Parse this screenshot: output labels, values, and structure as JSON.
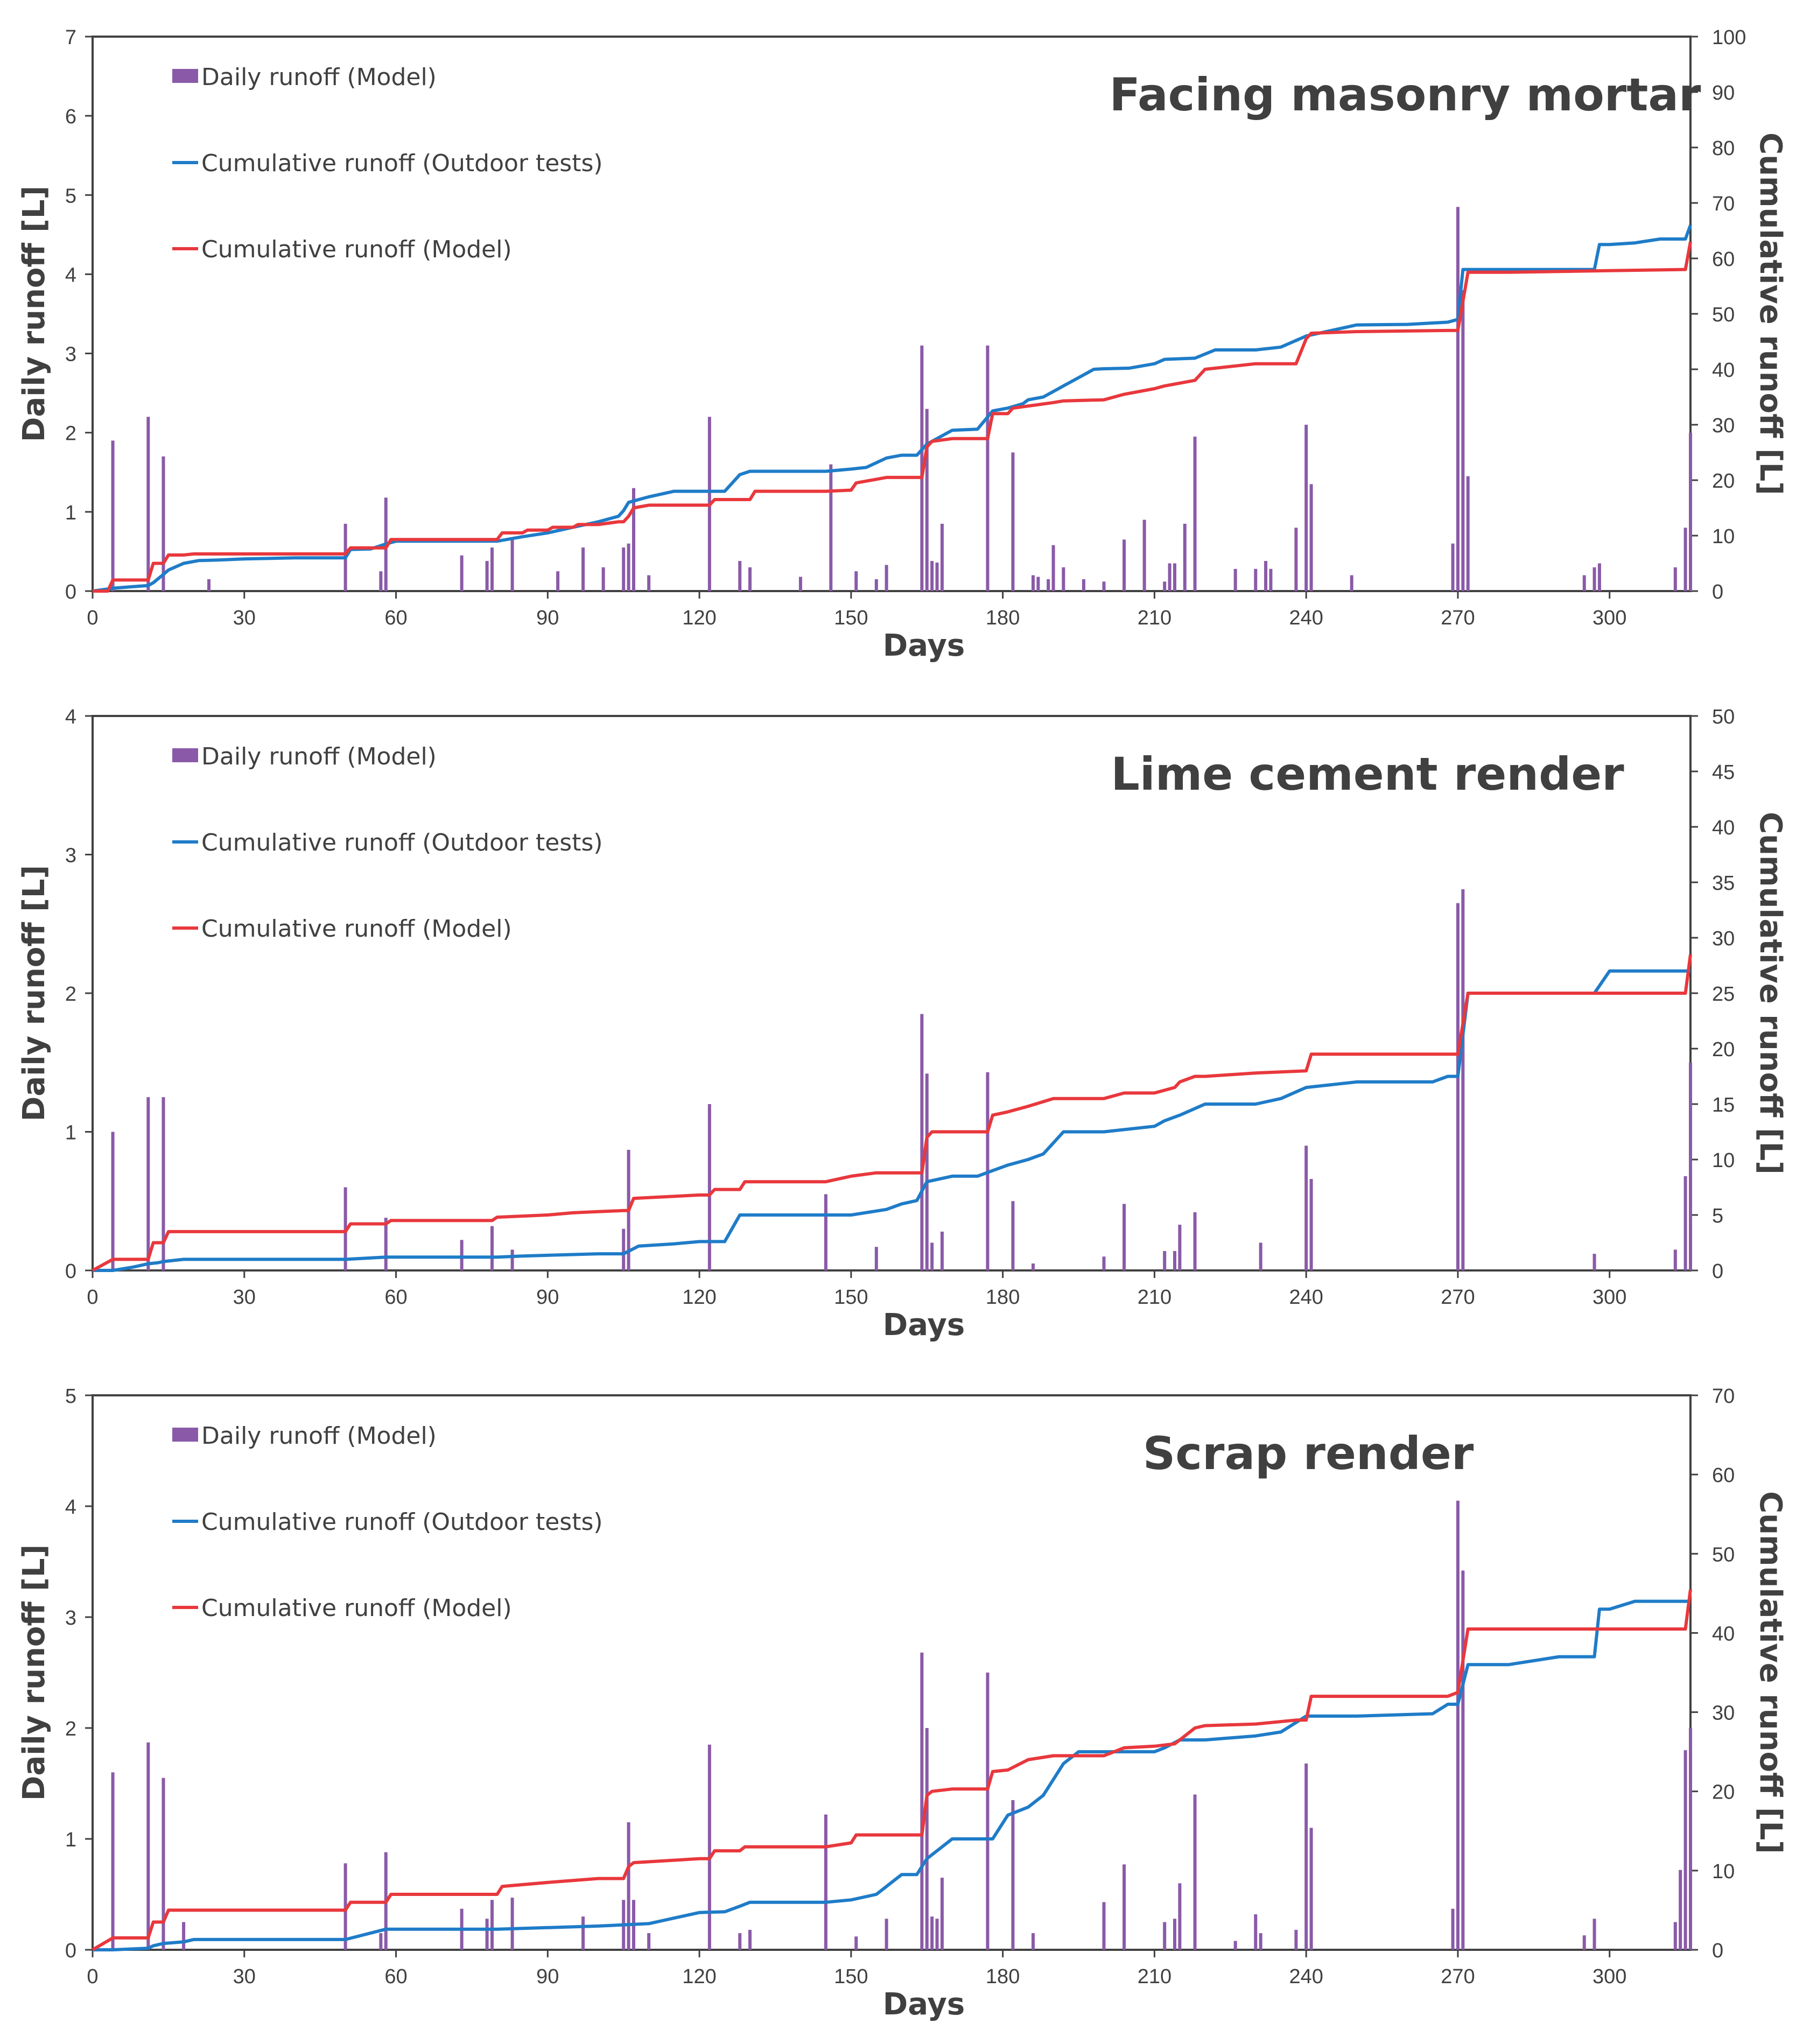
{
  "colors": {
    "model_bar": "#8a5aa8",
    "outdoor_line": "#1f7cc8",
    "model_line": "#e8383d",
    "axis": "#404040"
  },
  "legend": {
    "daily_model": "Daily runoff (Model)",
    "cum_outdoor": "Cumulative runoff (Outdoor tests)",
    "cum_model": "Cumulative runoff (Model)"
  },
  "chart_data": [
    {
      "type": "bar+line",
      "title": "Facing masonry mortar",
      "xlabel": "Days",
      "ylabel": "Daily runoff  [L]",
      "y2label": "Cumulative runoff [L]",
      "xlim": [
        0,
        316
      ],
      "ylim": [
        0,
        7
      ],
      "y2lim": [
        0,
        100
      ],
      "xticks": [
        "0",
        "30",
        "60",
        "90",
        "120",
        "150",
        "180",
        "210",
        "240",
        "270",
        "300"
      ],
      "yticks": [
        "0",
        "1",
        "2",
        "3",
        "4",
        "5",
        "6",
        "7"
      ],
      "y2ticks": [
        "0",
        "10",
        "20",
        "30",
        "40",
        "50",
        "60",
        "70",
        "80",
        "90",
        "100"
      ],
      "bars": {
        "x": [
          4,
          11,
          14,
          23,
          50,
          57,
          58,
          73,
          78,
          79,
          83,
          92,
          97,
          101,
          105,
          106,
          107,
          110,
          122,
          128,
          130,
          140,
          146,
          151,
          155,
          157,
          164,
          165,
          166,
          167,
          168,
          177,
          182,
          186,
          187,
          189,
          190,
          192,
          196,
          200,
          204,
          208,
          212,
          213,
          214,
          216,
          218,
          226,
          230,
          232,
          233,
          238,
          240,
          241,
          249,
          269,
          270,
          271,
          272,
          295,
          297,
          298,
          313,
          315,
          316
        ],
        "y": [
          1.9,
          2.2,
          1.7,
          0.15,
          0.85,
          0.25,
          1.18,
          0.45,
          0.38,
          0.55,
          0.65,
          0.25,
          0.55,
          0.3,
          0.55,
          0.6,
          1.3,
          0.2,
          2.2,
          0.38,
          0.3,
          0.18,
          1.6,
          0.25,
          0.15,
          0.33,
          3.1,
          2.3,
          0.38,
          0.36,
          0.85,
          3.1,
          1.75,
          0.2,
          0.18,
          0.15,
          0.58,
          0.3,
          0.15,
          0.12,
          0.65,
          0.9,
          0.12,
          0.35,
          0.35,
          0.85,
          1.95,
          0.28,
          0.28,
          0.38,
          0.28,
          0.8,
          2.1,
          1.35,
          0.2,
          0.6,
          4.85,
          3.8,
          1.45,
          0.2,
          0.3,
          0.35,
          0.3,
          0.8,
          2.0
        ]
      },
      "cumulative_outdoor": {
        "x": [
          0,
          4,
          8,
          11,
          12,
          14,
          15,
          18,
          21,
          25,
          30,
          40,
          50,
          51,
          55,
          58,
          60,
          65,
          70,
          80,
          85,
          90,
          95,
          100,
          104,
          105,
          106,
          110,
          115,
          120,
          125,
          128,
          130,
          145,
          150,
          153,
          157,
          160,
          163,
          165,
          170,
          175,
          178,
          181,
          184,
          185,
          188,
          190,
          192,
          195,
          198,
          200,
          205,
          210,
          212,
          218,
          222,
          230,
          235,
          240,
          245,
          250,
          260,
          268,
          270,
          271,
          272,
          280,
          290,
          297,
          298,
          300,
          305,
          310,
          315,
          316
        ],
        "y": [
          0,
          0.5,
          0.8,
          1.0,
          1.5,
          3.0,
          3.8,
          5.0,
          5.5,
          5.6,
          5.8,
          6.0,
          6.0,
          7.5,
          7.6,
          8.5,
          9.0,
          9.0,
          9.0,
          9.0,
          9.8,
          10.5,
          11.5,
          12.5,
          13.5,
          14.5,
          16.0,
          17.0,
          18.0,
          18.0,
          18.0,
          21.0,
          21.6,
          21.6,
          22.0,
          22.3,
          24.0,
          24.5,
          24.5,
          26.5,
          29.0,
          29.2,
          32.5,
          33.0,
          33.8,
          34.5,
          35.0,
          36.0,
          37.0,
          38.5,
          40.0,
          40.1,
          40.2,
          41.0,
          41.8,
          42.0,
          43.5,
          43.5,
          44.0,
          46.0,
          47.0,
          48.0,
          48.1,
          48.5,
          49.0,
          58.0,
          58.0,
          58.0,
          58.0,
          58.0,
          62.5,
          62.5,
          62.8,
          63.5,
          63.5,
          66.0
        ]
      },
      "cumulative_model": {
        "x": [
          0,
          3,
          4,
          11,
          12,
          14,
          15,
          18,
          20,
          30,
          40,
          50,
          51,
          58,
          59,
          70,
          80,
          81,
          85,
          86,
          90,
          91,
          95,
          96,
          100,
          104,
          105,
          106,
          107,
          110,
          122,
          123,
          130,
          131,
          145,
          150,
          151,
          157,
          164,
          165,
          166,
          170,
          177,
          178,
          181,
          182,
          186,
          190,
          192,
          200,
          204,
          210,
          212,
          218,
          220,
          230,
          238,
          240,
          241,
          250,
          268,
          270,
          272,
          280,
          300,
          315,
          316
        ],
        "y": [
          0,
          0,
          2,
          2,
          5,
          5,
          6.5,
          6.5,
          6.7,
          6.7,
          6.7,
          6.7,
          7.8,
          7.8,
          9.3,
          9.3,
          9.3,
          10.5,
          10.5,
          11.0,
          11.0,
          11.5,
          11.5,
          12.0,
          12.0,
          12.5,
          12.5,
          13.5,
          15.0,
          15.5,
          15.5,
          16.5,
          16.5,
          18.0,
          18.0,
          18.2,
          19.5,
          20.5,
          20.5,
          26.0,
          27.0,
          27.5,
          27.5,
          32.0,
          32.0,
          33.0,
          33.5,
          34.0,
          34.3,
          34.5,
          35.5,
          36.5,
          37.0,
          38.0,
          40.0,
          41.0,
          41.0,
          45.5,
          46.5,
          46.8,
          47.0,
          47.0,
          57.5,
          57.5,
          57.8,
          58.0,
          63.0
        ]
      }
    },
    {
      "type": "bar+line",
      "title": "Lime cement render",
      "xlabel": "Days",
      "ylabel": "Daily runoff  [L]",
      "y2label": "Cumulative runoff [L]",
      "xlim": [
        0,
        316
      ],
      "ylim": [
        0,
        4
      ],
      "y2lim": [
        0,
        50
      ],
      "xticks": [
        "0",
        "30",
        "60",
        "90",
        "120",
        "150",
        "180",
        "210",
        "240",
        "270",
        "300"
      ],
      "yticks": [
        "0",
        "1",
        "2",
        "3",
        "4"
      ],
      "y2ticks": [
        "0",
        "5",
        "10",
        "15",
        "20",
        "25",
        "30",
        "35",
        "40",
        "45",
        "50"
      ],
      "bars": {
        "x": [
          4,
          11,
          14,
          50,
          58,
          73,
          79,
          83,
          105,
          106,
          122,
          145,
          155,
          164,
          165,
          166,
          168,
          177,
          182,
          186,
          200,
          204,
          212,
          214,
          215,
          218,
          231,
          240,
          241,
          270,
          271,
          297,
          313,
          315,
          316
        ],
        "y": [
          1.0,
          1.25,
          1.25,
          0.6,
          0.38,
          0.22,
          0.32,
          0.15,
          0.3,
          0.87,
          1.2,
          0.55,
          0.17,
          1.85,
          1.42,
          0.2,
          0.28,
          1.43,
          0.5,
          0.05,
          0.1,
          0.48,
          0.14,
          0.14,
          0.33,
          0.42,
          0.2,
          0.9,
          0.66,
          2.65,
          2.75,
          0.12,
          0.15,
          0.68,
          1.5
        ]
      },
      "cumulative_outdoor": {
        "x": [
          0,
          4,
          8,
          11,
          13,
          14,
          18,
          20,
          30,
          50,
          58,
          60,
          80,
          85,
          100,
          105,
          108,
          115,
          120,
          125,
          128,
          135,
          140,
          150,
          157,
          160,
          163,
          165,
          170,
          175,
          178,
          181,
          185,
          188,
          190,
          192,
          195,
          200,
          210,
          212,
          215,
          220,
          230,
          235,
          240,
          250,
          265,
          268,
          270,
          272,
          280,
          297,
          300,
          316
        ],
        "y": [
          0,
          0,
          0.3,
          0.6,
          0.7,
          0.8,
          1.0,
          1.0,
          1.0,
          1.0,
          1.2,
          1.2,
          1.2,
          1.3,
          1.5,
          1.5,
          2.2,
          2.4,
          2.6,
          2.6,
          5.0,
          5.0,
          5.0,
          5.0,
          5.5,
          6.0,
          6.3,
          8.0,
          8.5,
          8.5,
          9.0,
          9.5,
          10.0,
          10.5,
          11.5,
          12.5,
          12.5,
          12.5,
          13.0,
          13.5,
          14.0,
          15.0,
          15.0,
          15.5,
          16.5,
          17.0,
          17.0,
          17.5,
          17.5,
          25.0,
          25.0,
          25.0,
          27.0,
          27.0
        ]
      },
      "cumulative_model": {
        "x": [
          0,
          4,
          11,
          12,
          14,
          15,
          30,
          50,
          51,
          58,
          59,
          73,
          79,
          80,
          90,
          95,
          100,
          105,
          106,
          107,
          120,
          122,
          123,
          128,
          129,
          145,
          150,
          155,
          164,
          165,
          166,
          170,
          177,
          178,
          181,
          185,
          190,
          200,
          204,
          210,
          214,
          215,
          218,
          220,
          230,
          240,
          241,
          250,
          269,
          270,
          272,
          280,
          300,
          315,
          316
        ],
        "y": [
          0,
          1,
          1,
          2.5,
          2.5,
          3.5,
          3.5,
          3.5,
          4.2,
          4.2,
          4.5,
          4.5,
          4.5,
          4.8,
          5.0,
          5.2,
          5.3,
          5.4,
          5.4,
          6.5,
          6.8,
          6.8,
          7.3,
          7.3,
          8.0,
          8.0,
          8.5,
          8.8,
          8.8,
          12.0,
          12.5,
          12.5,
          12.5,
          14.0,
          14.3,
          14.8,
          15.5,
          15.5,
          16.0,
          16.0,
          16.5,
          17.0,
          17.5,
          17.5,
          17.8,
          18.0,
          19.5,
          19.5,
          19.5,
          19.5,
          25.0,
          25.0,
          25.0,
          25.0,
          28.5
        ]
      }
    },
    {
      "type": "bar+line",
      "title": "Scrap render",
      "xlabel": "Days",
      "ylabel": "Daily runoff [L]",
      "y2label": "Cumulative runoff [L]",
      "xlim": [
        0,
        316
      ],
      "ylim": [
        0,
        5
      ],
      "y2lim": [
        0,
        70
      ],
      "xticks": [
        "0",
        "30",
        "60",
        "90",
        "120",
        "150",
        "180",
        "210",
        "240",
        "270",
        "300"
      ],
      "yticks": [
        "0",
        "1",
        "2",
        "3",
        "4",
        "5"
      ],
      "y2ticks": [
        "0",
        "10",
        "20",
        "30",
        "40",
        "50",
        "60",
        "70"
      ],
      "bars": {
        "x": [
          4,
          11,
          14,
          18,
          50,
          57,
          58,
          73,
          78,
          79,
          83,
          97,
          105,
          106,
          107,
          110,
          122,
          128,
          130,
          145,
          151,
          157,
          164,
          165,
          166,
          167,
          168,
          177,
          182,
          186,
          200,
          204,
          212,
          214,
          215,
          218,
          226,
          230,
          231,
          238,
          240,
          241,
          269,
          270,
          271,
          295,
          297,
          313,
          314,
          315,
          316
        ],
        "y": [
          1.6,
          1.87,
          1.55,
          0.25,
          0.78,
          0.15,
          0.88,
          0.37,
          0.28,
          0.45,
          0.47,
          0.3,
          0.45,
          1.15,
          0.45,
          0.15,
          1.85,
          0.15,
          0.18,
          1.22,
          0.12,
          0.28,
          2.68,
          2.0,
          0.3,
          0.28,
          0.65,
          2.5,
          1.35,
          0.15,
          0.43,
          0.77,
          0.25,
          0.28,
          0.6,
          1.4,
          0.08,
          0.32,
          0.15,
          0.18,
          1.68,
          1.1,
          0.37,
          4.05,
          3.42,
          0.13,
          0.28,
          0.25,
          0.72,
          1.8,
          2.0
        ]
      },
      "cumulative_outdoor": {
        "x": [
          0,
          4,
          11,
          12,
          14,
          18,
          20,
          30,
          50,
          58,
          60,
          80,
          100,
          110,
          115,
          120,
          125,
          128,
          130,
          140,
          145,
          150,
          155,
          158,
          160,
          163,
          165,
          170,
          175,
          178,
          181,
          185,
          188,
          190,
          192,
          195,
          200,
          210,
          212,
          215,
          220,
          230,
          235,
          240,
          250,
          265,
          268,
          270,
          272,
          280,
          290,
          297,
          298,
          300,
          305,
          310,
          316
        ],
        "y": [
          0,
          0,
          0.2,
          0.5,
          0.8,
          1.0,
          1.3,
          1.3,
          1.3,
          2.6,
          2.6,
          2.6,
          3.0,
          3.3,
          4.0,
          4.7,
          4.8,
          5.5,
          6.0,
          6.0,
          6.0,
          6.3,
          7.0,
          8.5,
          9.5,
          9.5,
          11.5,
          14.0,
          14.0,
          14.0,
          17.0,
          18.0,
          19.5,
          21.5,
          23.5,
          25.0,
          25.0,
          25.0,
          25.5,
          26.5,
          26.5,
          27.0,
          27.5,
          29.5,
          29.5,
          29.8,
          31.0,
          31.0,
          36.0,
          36.0,
          37.0,
          37.0,
          43.0,
          43.0,
          44.0,
          44.0,
          44.0
        ]
      },
      "cumulative_model": {
        "x": [
          0,
          4,
          11,
          12,
          14,
          15,
          30,
          50,
          51,
          58,
          59,
          80,
          81,
          90,
          100,
          105,
          106,
          107,
          120,
          122,
          123,
          128,
          129,
          145,
          150,
          151,
          164,
          165,
          166,
          170,
          177,
          178,
          181,
          185,
          190,
          200,
          204,
          210,
          214,
          215,
          218,
          220,
          230,
          238,
          240,
          241,
          268,
          270,
          272,
          280,
          300,
          315,
          316
        ],
        "y": [
          0,
          1.5,
          1.5,
          3.5,
          3.5,
          5.0,
          5.0,
          5.0,
          6.0,
          6.0,
          7.0,
          7.0,
          8.0,
          8.5,
          9.0,
          9.0,
          10.5,
          11.0,
          11.5,
          11.5,
          12.5,
          12.5,
          13.0,
          13.0,
          13.5,
          14.5,
          14.5,
          19.5,
          20.0,
          20.3,
          20.3,
          22.5,
          22.7,
          24.0,
          24.5,
          24.5,
          25.5,
          25.7,
          26.0,
          26.5,
          28.0,
          28.3,
          28.5,
          29.0,
          29.0,
          32.0,
          32.0,
          32.5,
          40.5,
          40.5,
          40.5,
          40.5,
          45.5
        ]
      }
    }
  ]
}
